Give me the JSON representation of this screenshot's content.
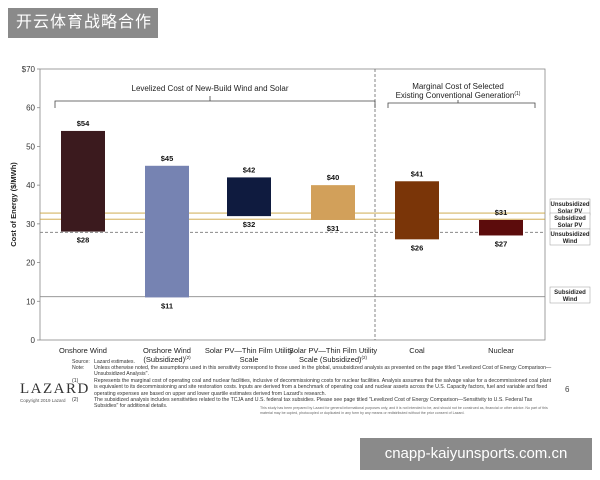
{
  "watermark_top": "开云体育战略合作",
  "watermark_bottom": "cnapp-kaiyunsports.com.cn",
  "chart_data": {
    "type": "bar",
    "subtype": "floating range",
    "title": "",
    "ylabel": "Cost of Energy ($/MWh)",
    "xlabel": "",
    "ylim": [
      0,
      70
    ],
    "yticks": [
      0,
      10,
      20,
      30,
      40,
      50,
      60,
      70
    ],
    "ytick_labels": [
      "0",
      "10",
      "20",
      "30",
      "40",
      "50",
      "60",
      "$70"
    ],
    "grid": false,
    "sections": [
      {
        "label": "Levelized Cost of New-Build Wind and Solar",
        "categories": [
          0,
          1,
          2,
          3
        ]
      },
      {
        "label": "Marginal Cost of Selected Existing Conventional Generation",
        "superscript": "(1)",
        "categories": [
          4,
          5
        ]
      }
    ],
    "categories": [
      {
        "name": "Onshore Wind",
        "low": 28,
        "high": 54,
        "low_label": "$28",
        "high_label": "$54",
        "color": "#3b1a1e"
      },
      {
        "name": "Onshore Wind (Subsidized)",
        "superscript": "(2)",
        "low": 11,
        "high": 45,
        "low_label": "$11",
        "high_label": "$45",
        "color": "#7683b2"
      },
      {
        "name": "Solar PV—Thin Film Utility Scale",
        "low": 32,
        "high": 42,
        "low_label": "$32",
        "high_label": "$42",
        "color": "#0f1b3f"
      },
      {
        "name": "Solar PV—Thin Film Utility Scale (Subsidized)",
        "superscript": "(2)",
        "low": 31,
        "high": 40,
        "low_label": "$31",
        "high_label": "$40",
        "color": "#d2a05a"
      },
      {
        "name": "Coal",
        "low": 26,
        "high": 41,
        "low_label": "$26",
        "high_label": "$41",
        "color": "#7a3508"
      },
      {
        "name": "Nuclear",
        "low": 27,
        "high": 31,
        "low_label": "$27",
        "high_label": "$31",
        "color": "#5c0c0c"
      }
    ],
    "reference_lines": [
      {
        "label": "Unsubsidized Solar PV",
        "value": 32.8,
        "color": "#c9a13a",
        "style": "solid"
      },
      {
        "label": "Subsidized Solar PV",
        "value": 31.2,
        "color": "#c9a13a",
        "style": "solid"
      },
      {
        "label": "Unsubsidized Wind",
        "value": 27.8,
        "color": "#8a8a8a",
        "style": "dashed"
      },
      {
        "label": "Subsidized Wind",
        "value": 11.2,
        "color": "#8a8a8a",
        "style": "solid"
      }
    ]
  },
  "footnotes": {
    "source_label": "Source:",
    "source_text": "Lazard estimates.",
    "note_label": "Note:",
    "note_text": "Unless otherwise noted, the assumptions used in this sensitivity correspond to those used in the global, unsubsidized analysis as presented on the page titled \"Levelized Cost of Energy Comparison—Unsubsidized Analysis\".",
    "note1_label": "(1)",
    "note1_text": "Represents the marginal cost of operating coal and nuclear facilities, inclusive of decommissioning costs for nuclear facilities. Analysis assumes that the salvage value for a decommissioned coal plant is equivalent to its decommissioning and site restoration costs. Inputs are derived from a benchmark of operating coal and nuclear assets across the U.S. Capacity factors, fuel and variable and fixed operating expenses are based on upper and lower quartile estimates derived from Lazard's research.",
    "note2_label": "(2)",
    "note2_text": "The subsidized analysis includes sensitivities related to the TCJA and U.S. federal tax subsidies. Please see page titled \"Levelized Cost of Energy Comparison—Sensitivity to U.S. Federal Tax Subsidies\" for additional details.",
    "disclaimer": "This study has been prepared by Lazard for general informational purposes only, and it is not intended to be, and should not be construed as, financial or other advice. No part of this material may be copied, photocopied or duplicated in any form by any means or redistributed without the prior consent of Lazard."
  },
  "logo": "LAZARD",
  "copyright": "Copyright 2019 Lazard",
  "page_number": "6"
}
